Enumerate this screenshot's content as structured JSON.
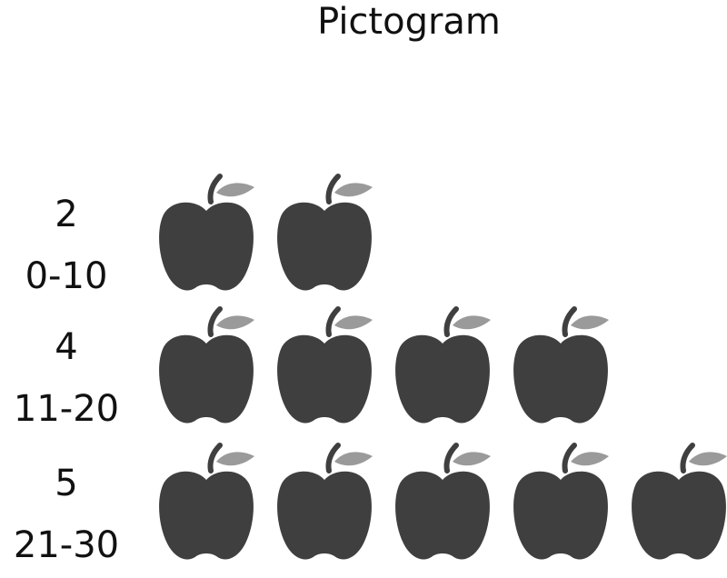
{
  "chart_data": {
    "type": "pictogram",
    "title": "Pictogram",
    "icon": "apple-icon",
    "icon_color": "#3f3f3f",
    "leaf_color": "#9a9a9a",
    "rows": [
      {
        "count": 2,
        "label": "2",
        "range": "0-10"
      },
      {
        "count": 4,
        "label": "4",
        "range": "11-20"
      },
      {
        "count": 5,
        "label": "5",
        "range": "21-30"
      }
    ]
  }
}
